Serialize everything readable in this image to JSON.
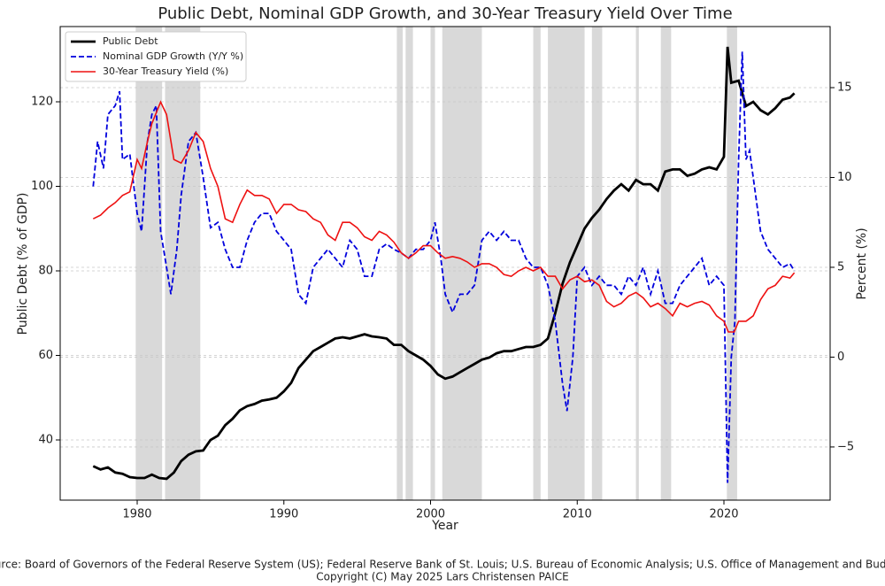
{
  "chart_data": {
    "type": "line",
    "title": "Public Debt, Nominal GDP Growth, and 30-Year Treasury Yield Over Time",
    "x_label": "Year",
    "y_label": "Public Debt (% of GDP)",
    "y2_label": "Percent (%)",
    "source": "Source: Board of Governors of the Federal Reserve System (US); Federal Reserve Bank of St. Louis; U.S. Bureau of Economic Analysis; U.S. Office of Management and Budget",
    "copyright": "Copyright (C) May 2025 Lars Christensen PAICE",
    "xlim": [
      1974.75,
      2027.24
    ],
    "xticks": [
      1980,
      1990,
      2000,
      2010,
      2020
    ],
    "ylim": [
      25.76,
      137.8
    ],
    "yticks": [
      40,
      60,
      80,
      100,
      120
    ],
    "y2lim": [
      -7.96,
      18.4
    ],
    "y2ticks": [
      {
        "value": -5,
        "label": "−5"
      },
      0,
      5,
      10,
      15
    ],
    "grid": true,
    "legend": "upper left",
    "shade_color": "#d9d9d9",
    "shaded_regions": [
      [
        1979.9,
        1981.7
      ],
      [
        1981.9,
        1984.3
      ],
      [
        1997.7,
        1998.1
      ],
      [
        1998.3,
        1998.8
      ],
      [
        2000.0,
        2000.3
      ],
      [
        2000.8,
        2003.5
      ],
      [
        2007.0,
        2007.5
      ],
      [
        2008.0,
        2010.5
      ],
      [
        2011.0,
        2011.7
      ],
      [
        2014.0,
        2014.2
      ],
      [
        2015.7,
        2016.4
      ],
      [
        2020.2,
        2020.9
      ]
    ],
    "series": [
      {
        "name": "Public Debt",
        "color": "#000000",
        "dash": "solid",
        "width": 2.8,
        "x": [
          1977,
          1977.5,
          1978,
          1978.5,
          1979,
          1979.5,
          1980,
          1980.5,
          1981,
          1981.5,
          1982,
          1982.5,
          1983,
          1983.5,
          1984,
          1984.5,
          1985,
          1985.5,
          1986,
          1986.5,
          1987,
          1987.5,
          1988,
          1988.5,
          1989,
          1989.5,
          1990,
          1990.5,
          1991,
          1991.5,
          1992,
          1992.5,
          1993,
          1993.5,
          1994,
          1994.5,
          1995,
          1995.5,
          1996,
          1996.5,
          1997,
          1997.5,
          1998,
          1998.5,
          1999,
          1999.5,
          2000,
          2000.5,
          2001,
          2001.5,
          2002,
          2002.5,
          2003,
          2003.5,
          2004,
          2004.5,
          2005,
          2005.5,
          2006,
          2006.5,
          2007,
          2007.5,
          2008,
          2008.5,
          2009,
          2009.5,
          2010,
          2010.5,
          2011,
          2011.5,
          2012,
          2012.5,
          2013,
          2013.5,
          2014,
          2014.5,
          2015,
          2015.5,
          2016,
          2016.5,
          2017,
          2017.5,
          2018,
          2018.5,
          2019,
          2019.5,
          2020,
          2020.25,
          2020.5,
          2021,
          2021.5,
          2022,
          2022.5,
          2023,
          2023.5,
          2024,
          2024.5,
          2024.8
        ],
        "values": [
          33.8,
          33,
          33.5,
          32.3,
          32,
          31.2,
          31,
          31,
          31.8,
          31,
          30.8,
          32.3,
          35,
          36.5,
          37.3,
          37.5,
          40,
          41,
          43.5,
          45,
          47,
          48,
          48.5,
          49.3,
          49.6,
          50,
          51.5,
          53.5,
          57,
          59,
          61,
          62,
          63,
          64,
          64.3,
          64,
          64.5,
          65,
          64.5,
          64.3,
          64,
          62.5,
          62.5,
          61,
          60,
          59,
          57.5,
          55.5,
          54.5,
          55,
          56,
          57,
          58,
          59,
          59.5,
          60.5,
          61,
          61,
          61.5,
          62,
          62,
          62.5,
          64,
          70,
          77,
          82,
          86,
          90,
          92.5,
          94.5,
          97,
          99,
          100.5,
          99,
          101.5,
          100.5,
          100.5,
          99,
          103.5,
          104,
          104,
          102.5,
          103,
          104,
          104.5,
          104,
          107,
          133,
          124.5,
          125,
          119,
          120,
          118,
          117,
          118.5,
          120.5,
          121,
          122
        ]
      },
      {
        "name": "Nominal GDP Growth (Y/Y %)",
        "color": "#0000dd",
        "dash": "dashed",
        "width": 1.8,
        "axis": "y2",
        "x": [
          1977,
          1977.3,
          1977.7,
          1978,
          1978.5,
          1978.8,
          1979,
          1979.5,
          1980,
          1980.3,
          1980.7,
          1981,
          1981.3,
          1981.6,
          1982,
          1982.3,
          1982.7,
          1983,
          1983.5,
          1984,
          1984.5,
          1985,
          1985.5,
          1986,
          1986.5,
          1987,
          1987.5,
          1988,
          1988.5,
          1989,
          1989.5,
          1990,
          1990.5,
          1991,
          1991.5,
          1992,
          1992.5,
          1993,
          1993.5,
          1994,
          1994.5,
          1995,
          1995.5,
          1996,
          1996.5,
          1997,
          1997.5,
          1998,
          1998.5,
          1999,
          1999.5,
          2000,
          2000.3,
          2000.7,
          2001,
          2001.5,
          2002,
          2002.5,
          2003,
          2003.5,
          2004,
          2004.5,
          2005,
          2005.5,
          2006,
          2006.5,
          2007,
          2007.5,
          2008,
          2008.5,
          2009,
          2009.3,
          2009.7,
          2010,
          2010.5,
          2011,
          2011.5,
          2012,
          2012.5,
          2013,
          2013.5,
          2014,
          2014.5,
          2015,
          2015.5,
          2016,
          2016.5,
          2017,
          2017.5,
          2018,
          2018.5,
          2019,
          2019.5,
          2020,
          2020.25,
          2020.5,
          2020.75,
          2021,
          2021.25,
          2021.5,
          2021.75,
          2022,
          2022.5,
          2023,
          2023.5,
          2024,
          2024.5,
          2024.8
        ],
        "values": [
          9.5,
          12,
          10.5,
          13.5,
          14,
          14.8,
          11,
          11.3,
          8,
          7,
          12,
          13.5,
          14,
          7,
          5,
          3.5,
          6,
          9,
          12,
          12.5,
          10,
          7.2,
          7.5,
          6,
          5,
          5,
          6.5,
          7.5,
          8,
          8,
          7,
          6.5,
          6,
          3.5,
          3,
          5,
          5.5,
          6,
          5.5,
          5,
          6.5,
          6,
          4.5,
          4.5,
          6,
          6.3,
          6,
          5.8,
          5.5,
          6,
          6,
          6.5,
          7.5,
          5.5,
          3.5,
          2.5,
          3.5,
          3.5,
          4,
          6.5,
          7,
          6.5,
          7,
          6.5,
          6.5,
          5.5,
          5,
          5,
          4,
          2,
          -1.5,
          -3,
          0,
          4.5,
          5,
          4,
          4.5,
          4,
          4,
          3.5,
          4.5,
          4,
          5,
          3.5,
          4.8,
          3,
          3,
          4,
          4.5,
          5,
          5.5,
          4,
          4.5,
          4,
          -7,
          0,
          2,
          11,
          17,
          11,
          11.5,
          10,
          7,
          6,
          5.5,
          5,
          5.2,
          4.8
        ]
      },
      {
        "name": "30-Year Treasury Yield (%)",
        "color": "#ee1111",
        "dash": "solid",
        "width": 1.6,
        "axis": "y2",
        "x": [
          1977,
          1977.5,
          1978,
          1978.5,
          1979,
          1979.5,
          1980,
          1980.3,
          1980.7,
          1981,
          1981.6,
          1982,
          1982.5,
          1983,
          1983.5,
          1984,
          1984.5,
          1985,
          1985.5,
          1986,
          1986.5,
          1987,
          1987.5,
          1988,
          1988.5,
          1989,
          1989.5,
          1990,
          1990.5,
          1991,
          1991.5,
          1992,
          1992.5,
          1993,
          1993.5,
          1994,
          1994.5,
          1995,
          1995.5,
          1996,
          1996.5,
          1997,
          1997.5,
          1998,
          1998.5,
          1999,
          1999.5,
          2000,
          2000.5,
          2001,
          2001.5,
          2002,
          2002.5,
          2003,
          2003.5,
          2004,
          2004.5,
          2005,
          2005.5,
          2006,
          2006.5,
          2007,
          2007.5,
          2008,
          2008.5,
          2009,
          2009.5,
          2010,
          2010.5,
          2011,
          2011.5,
          2012,
          2012.5,
          2013,
          2013.5,
          2014,
          2014.5,
          2015,
          2015.5,
          2016,
          2016.5,
          2017,
          2017.5,
          2018,
          2018.5,
          2019,
          2019.5,
          2020,
          2020.3,
          2020.7,
          2021,
          2021.5,
          2022,
          2022.5,
          2023,
          2023.5,
          2024,
          2024.5,
          2024.8
        ],
        "values": [
          7.7,
          7.9,
          8.3,
          8.6,
          9,
          9.2,
          11,
          10.5,
          12,
          13,
          14.2,
          13.5,
          11,
          10.8,
          11.5,
          12.5,
          12,
          10.5,
          9.5,
          7.7,
          7.5,
          8.5,
          9.3,
          9,
          9,
          8.8,
          8,
          8.5,
          8.5,
          8.2,
          8.1,
          7.7,
          7.5,
          6.8,
          6.5,
          7.5,
          7.5,
          7.2,
          6.7,
          6.5,
          7,
          6.8,
          6.4,
          5.8,
          5.5,
          5.8,
          6.2,
          6.2,
          5.8,
          5.5,
          5.6,
          5.5,
          5.3,
          5,
          5.2,
          5.2,
          5,
          4.6,
          4.5,
          4.8,
          5,
          4.8,
          5,
          4.5,
          4.5,
          3.8,
          4.3,
          4.5,
          4.2,
          4.3,
          4,
          3.1,
          2.8,
          3,
          3.4,
          3.6,
          3.3,
          2.8,
          3,
          2.7,
          2.3,
          3,
          2.8,
          3,
          3.1,
          2.9,
          2.3,
          2,
          1.4,
          1.4,
          2,
          2,
          2.3,
          3.2,
          3.8,
          4,
          4.5,
          4.4,
          4.7
        ]
      }
    ]
  }
}
